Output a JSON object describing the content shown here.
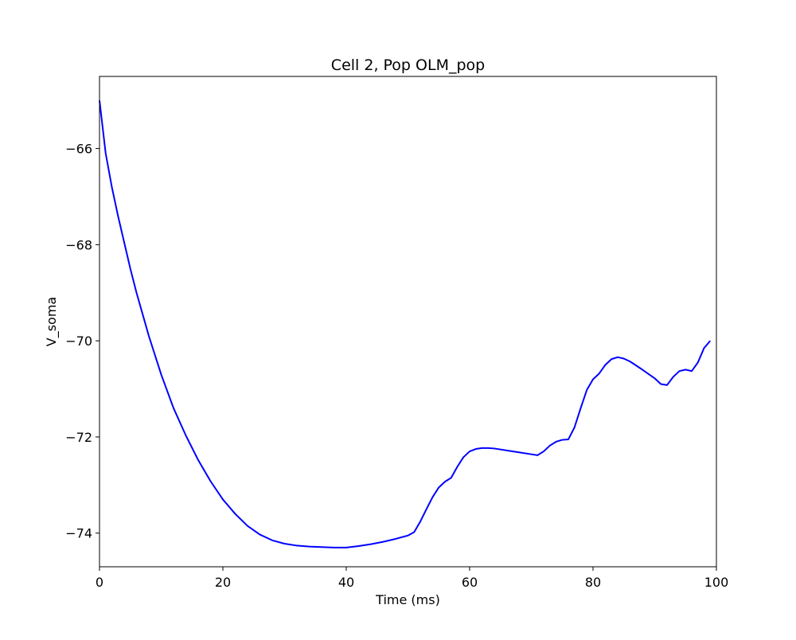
{
  "chart_data": {
    "type": "line",
    "title": "Cell 2, Pop OLM_pop",
    "xlabel": "Time (ms)",
    "ylabel": "V_soma",
    "xlim": [
      0,
      100
    ],
    "ylim": [
      -74.7,
      -64.5
    ],
    "x_ticks": [
      0,
      20,
      40,
      60,
      80,
      100
    ],
    "x_tick_labels": [
      "0",
      "20",
      "40",
      "60",
      "80",
      "100"
    ],
    "y_ticks": [
      -74,
      -72,
      -70,
      -68,
      -66
    ],
    "y_tick_labels": [
      "−74",
      "−72",
      "−70",
      "−68",
      "−66"
    ],
    "grid": false,
    "legend": "none",
    "series": [
      {
        "color": "#0000ff",
        "x": [
          0,
          1,
          2,
          3,
          4,
          5,
          6,
          7,
          8,
          9,
          10,
          12,
          14,
          16,
          18,
          20,
          22,
          24,
          26,
          28,
          30,
          32,
          34,
          36,
          38,
          40,
          42,
          44,
          46,
          48,
          50,
          51,
          52,
          53,
          54,
          55,
          56,
          57,
          58,
          59,
          60,
          61,
          62,
          63,
          64,
          66,
          68,
          70,
          71,
          72,
          73,
          74,
          75,
          76,
          77,
          78,
          79,
          80,
          81,
          82,
          83,
          84,
          85,
          86,
          88,
          90,
          91,
          92,
          93,
          94,
          95,
          96,
          97,
          98,
          99
        ],
        "y": [
          -65.0,
          -66.1,
          -66.8,
          -67.4,
          -67.95,
          -68.5,
          -69.0,
          -69.45,
          -69.9,
          -70.3,
          -70.7,
          -71.4,
          -71.97,
          -72.48,
          -72.92,
          -73.3,
          -73.6,
          -73.85,
          -74.03,
          -74.15,
          -74.22,
          -74.26,
          -74.28,
          -74.29,
          -74.3,
          -74.3,
          -74.27,
          -74.23,
          -74.18,
          -74.12,
          -74.05,
          -73.98,
          -73.76,
          -73.5,
          -73.25,
          -73.05,
          -72.93,
          -72.85,
          -72.62,
          -72.42,
          -72.3,
          -72.25,
          -72.23,
          -72.23,
          -72.24,
          -72.28,
          -72.32,
          -72.36,
          -72.38,
          -72.3,
          -72.18,
          -72.1,
          -72.06,
          -72.05,
          -71.8,
          -71.4,
          -71.02,
          -70.8,
          -70.68,
          -70.5,
          -70.38,
          -70.34,
          -70.37,
          -70.43,
          -70.6,
          -70.78,
          -70.9,
          -70.92,
          -70.75,
          -70.63,
          -70.6,
          -70.63,
          -70.45,
          -70.15,
          -70.0
        ]
      }
    ]
  }
}
